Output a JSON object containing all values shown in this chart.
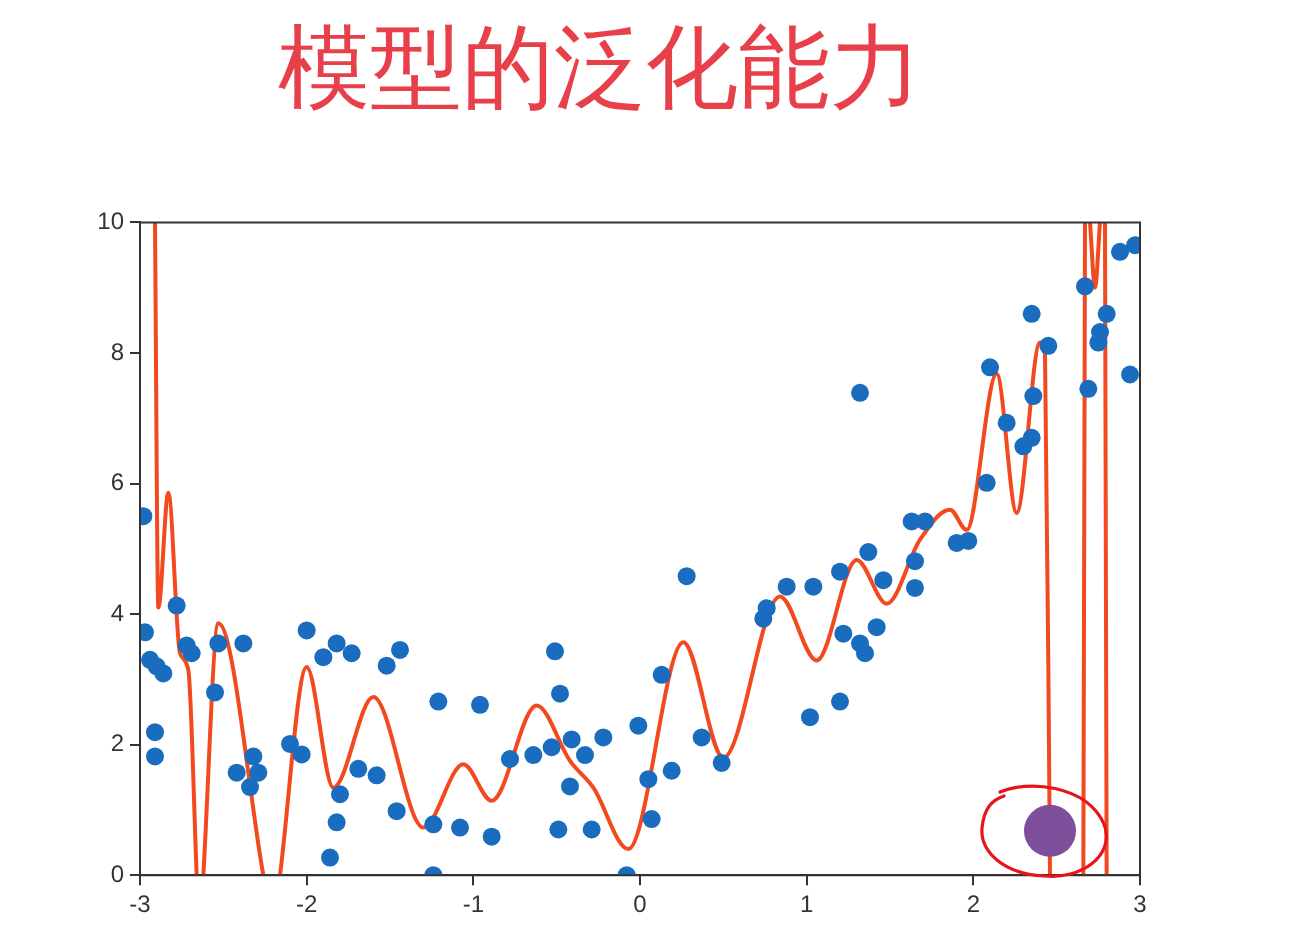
{
  "chart_data": {
    "type": "scatter",
    "title": "模型的泛化能力",
    "xlim": [
      -3,
      3
    ],
    "ylim": [
      0,
      10
    ],
    "xticks": [
      -3,
      -2,
      -1,
      0,
      1,
      2,
      3
    ],
    "yticks": [
      0,
      2,
      4,
      6,
      8,
      10
    ],
    "grid": false,
    "legend": false,
    "marker": "circle",
    "series": [
      {
        "type": "scatter",
        "color": "#1a6cbf",
        "x": [
          -2.98,
          -2.97,
          -2.94,
          -2.9,
          -2.86,
          -2.91,
          -2.91,
          -2.78,
          -2.72,
          -2.69,
          -2.55,
          -2.53,
          -2.38,
          -2.42,
          -2.34,
          -2.32,
          -2.29,
          -2.1,
          -2.03,
          -2.0,
          -1.9,
          -1.82,
          -1.73,
          -1.8,
          -1.82,
          -1.86,
          -1.69,
          -1.58,
          -1.52,
          -1.44,
          -1.46,
          -1.24,
          -1.21,
          -1.24,
          -1.08,
          -0.96,
          -0.89,
          -0.78,
          -0.64,
          -0.53,
          -0.51,
          -0.48,
          -0.41,
          -0.33,
          -0.42,
          -0.49,
          -0.29,
          -0.22,
          -0.08,
          -0.01,
          0.05,
          0.07,
          0.13,
          0.19,
          0.28,
          0.37,
          0.49,
          0.74,
          0.76,
          0.88,
          1.04,
          1.02,
          1.2,
          1.2,
          1.22,
          1.32,
          1.35,
          1.42,
          1.37,
          1.32,
          1.46,
          1.65,
          1.65,
          1.63,
          1.71,
          1.9,
          1.97,
          2.08,
          2.1,
          2.2,
          2.3,
          2.35,
          2.36,
          2.35,
          2.45,
          2.67,
          2.69,
          2.75,
          2.76,
          2.8,
          2.88,
          2.97,
          2.94
        ],
        "values": [
          5.5,
          3.72,
          3.3,
          3.2,
          3.09,
          2.19,
          1.82,
          4.13,
          3.52,
          3.4,
          2.8,
          3.55,
          3.55,
          1.57,
          1.35,
          1.82,
          1.57,
          2.01,
          1.85,
          3.75,
          3.34,
          3.55,
          3.4,
          1.24,
          0.81,
          0.27,
          1.63,
          1.53,
          3.21,
          3.45,
          0.98,
          0.78,
          2.66,
          0,
          0.73,
          2.61,
          0.59,
          1.78,
          1.84,
          1.96,
          3.43,
          2.78,
          2.08,
          1.84,
          1.36,
          0.7,
          0.7,
          2.11,
          0,
          2.29,
          1.47,
          0.86,
          3.07,
          1.6,
          4.58,
          2.11,
          1.72,
          3.93,
          4.09,
          4.42,
          4.42,
          2.42,
          2.66,
          4.65,
          3.7,
          3.55,
          3.4,
          3.8,
          4.95,
          7.39,
          4.52,
          4.4,
          4.81,
          5.42,
          5.42,
          5.09,
          5.12,
          6.01,
          7.78,
          6.93,
          6.57,
          6.7,
          7.34,
          8.6,
          8.11,
          9.02,
          7.45,
          8.16,
          8.32,
          8.6,
          9.55,
          9.65,
          7.67
        ]
      },
      {
        "type": "line",
        "color": "#f2491f",
        "marker": "none",
        "line_style": "solid",
        "x": [
          -2.91,
          -2.89,
          -2.83,
          -2.76,
          -2.71,
          -2.66,
          -2.64,
          -2.62,
          -2.53,
          -2.26,
          -2.21,
          -2.16,
          -2.0,
          -1.84,
          -1.6,
          -1.3,
          -1.06,
          -0.89,
          -0.62,
          -0.42,
          -0.28,
          -0.07,
          0.26,
          0.5,
          0.84,
          1.06,
          1.3,
          1.48,
          1.68,
          1.86,
          1.96,
          2.14,
          2.26,
          2.4,
          2.43,
          2.46,
          2.56,
          2.66,
          2.67,
          2.685,
          2.7,
          2.73,
          2.76,
          2.775,
          2.79,
          2.8
        ],
        "values": [
          10,
          4.1,
          5.86,
          3.4,
          3.14,
          0,
          null,
          0,
          3.86,
          0,
          null,
          0,
          3.19,
          1.34,
          2.73,
          0.73,
          1.7,
          1.14,
          2.6,
          1.75,
          1.34,
          0.4,
          3.57,
          1.8,
          4.27,
          3.29,
          4.83,
          4.16,
          5.14,
          5.6,
          5.29,
          7.68,
          5.55,
          8.16,
          8.0,
          0,
          null,
          0,
          10,
          null,
          10,
          9.0,
          10,
          null,
          10,
          0
        ]
      },
      {
        "type": "scatter",
        "color": "#7d4f9a",
        "x": [
          2.46
        ],
        "values": [
          0.68
        ]
      }
    ]
  }
}
